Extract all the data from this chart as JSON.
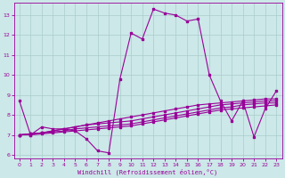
{
  "xlabel": "Windchill (Refroidissement éolien,°C)",
  "bg_color": "#cce8e8",
  "grid_color": "#aacccc",
  "line_color": "#990099",
  "xlim": [
    -0.5,
    23.5
  ],
  "ylim": [
    5.8,
    13.6
  ],
  "yticks": [
    6,
    7,
    8,
    9,
    10,
    11,
    12,
    13
  ],
  "xticks": [
    0,
    1,
    2,
    3,
    4,
    5,
    6,
    7,
    8,
    9,
    10,
    11,
    12,
    13,
    14,
    15,
    16,
    17,
    18,
    19,
    20,
    21,
    22,
    23
  ],
  "line1_x": [
    0,
    1,
    2,
    3,
    4,
    5,
    6,
    7,
    8,
    9,
    10,
    11,
    12,
    13,
    14,
    15,
    16,
    17,
    18,
    19,
    20,
    21,
    22,
    23
  ],
  "line1_y": [
    8.7,
    7.0,
    7.4,
    7.3,
    7.3,
    7.2,
    6.8,
    6.2,
    6.1,
    9.8,
    12.1,
    11.8,
    13.3,
    13.1,
    13.0,
    12.7,
    12.8,
    10.0,
    8.7,
    7.7,
    8.7,
    6.9,
    8.3,
    9.2
  ],
  "line2_x": [
    0,
    1,
    2,
    3,
    4,
    5,
    6,
    7,
    8,
    9,
    10,
    11,
    12,
    13,
    14,
    15,
    16,
    17,
    18,
    19,
    20,
    21,
    22,
    23
  ],
  "line2_y": [
    7.0,
    7.05,
    7.1,
    7.2,
    7.3,
    7.4,
    7.5,
    7.6,
    7.7,
    7.8,
    7.9,
    8.0,
    8.1,
    8.2,
    8.3,
    8.4,
    8.5,
    8.55,
    8.6,
    8.65,
    8.7,
    8.75,
    8.8,
    8.8
  ],
  "line3_x": [
    0,
    1,
    2,
    3,
    4,
    5,
    6,
    7,
    8,
    9,
    10,
    11,
    12,
    13,
    14,
    15,
    16,
    17,
    18,
    19,
    20,
    21,
    22,
    23
  ],
  "line3_y": [
    7.0,
    7.05,
    7.1,
    7.2,
    7.3,
    7.4,
    7.5,
    7.55,
    7.6,
    7.65,
    7.7,
    7.8,
    7.9,
    8.0,
    8.1,
    8.2,
    8.3,
    8.4,
    8.5,
    8.55,
    8.6,
    8.65,
    8.7,
    8.7
  ],
  "line4_x": [
    0,
    1,
    2,
    3,
    4,
    5,
    6,
    7,
    8,
    9,
    10,
    11,
    12,
    13,
    14,
    15,
    16,
    17,
    18,
    19,
    20,
    21,
    22,
    23
  ],
  "line4_y": [
    7.0,
    7.05,
    7.1,
    7.15,
    7.2,
    7.3,
    7.35,
    7.4,
    7.45,
    7.5,
    7.55,
    7.65,
    7.75,
    7.85,
    7.95,
    8.05,
    8.15,
    8.25,
    8.35,
    8.4,
    8.5,
    8.55,
    8.6,
    8.6
  ],
  "line5_x": [
    0,
    1,
    2,
    3,
    4,
    5,
    6,
    7,
    8,
    9,
    10,
    11,
    12,
    13,
    14,
    15,
    16,
    17,
    18,
    19,
    20,
    21,
    22,
    23
  ],
  "line5_y": [
    7.0,
    7.0,
    7.05,
    7.1,
    7.15,
    7.2,
    7.25,
    7.3,
    7.35,
    7.4,
    7.45,
    7.55,
    7.65,
    7.75,
    7.85,
    7.95,
    8.05,
    8.15,
    8.25,
    8.3,
    8.35,
    8.4,
    8.45,
    8.5
  ]
}
